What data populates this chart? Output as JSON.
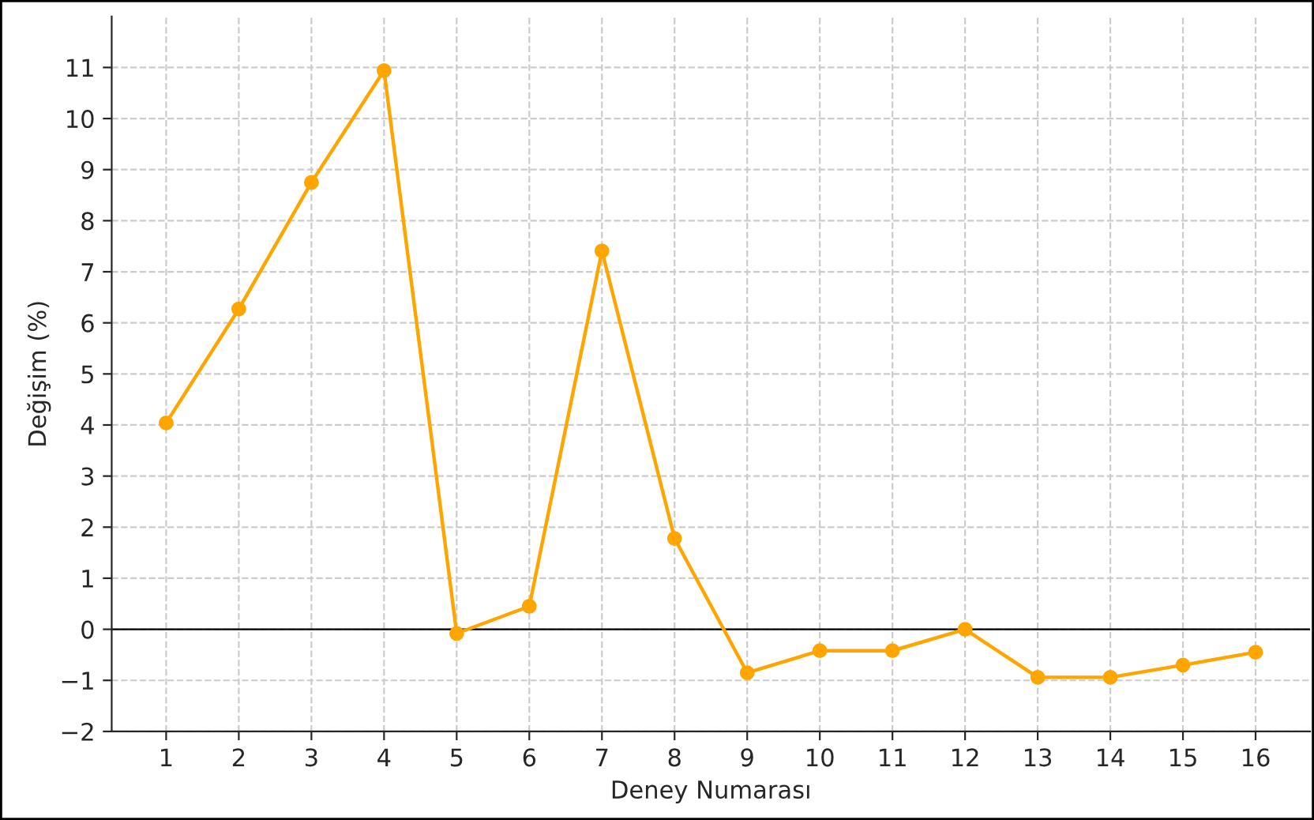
{
  "chart_data": {
    "type": "line",
    "xlabel": "Deney Numarası",
    "ylabel": "Değişim (%)",
    "x": [
      1,
      2,
      3,
      4,
      5,
      6,
      7,
      8,
      9,
      10,
      11,
      12,
      13,
      14,
      15,
      16
    ],
    "series": [
      {
        "color": "#ffa500",
        "values": [
          4.04,
          6.27,
          8.75,
          10.94,
          -0.08,
          0.45,
          7.41,
          1.78,
          -0.85,
          -0.42,
          -0.42,
          0,
          -0.94,
          -0.94,
          -0.7,
          -0.45
        ]
      }
    ],
    "xlim": [
      0.25,
      16.75
    ],
    "xticks": [
      1,
      2,
      3,
      4,
      5,
      6,
      7,
      8,
      9,
      10,
      11,
      12,
      13,
      14,
      15,
      16
    ],
    "ylim": [
      -2,
      12
    ],
    "yticks": [
      {
        "value": -2,
        "label": "−2"
      },
      {
        "value": -1,
        "label": "−1"
      },
      0,
      1,
      2,
      3,
      4,
      5,
      6,
      7,
      8,
      9,
      10,
      11
    ],
    "ref_lines": [
      {
        "axis": "y",
        "value": 0,
        "color": "#000000"
      }
    ],
    "grid": true,
    "marker": "circle",
    "line_style": "solid"
  }
}
